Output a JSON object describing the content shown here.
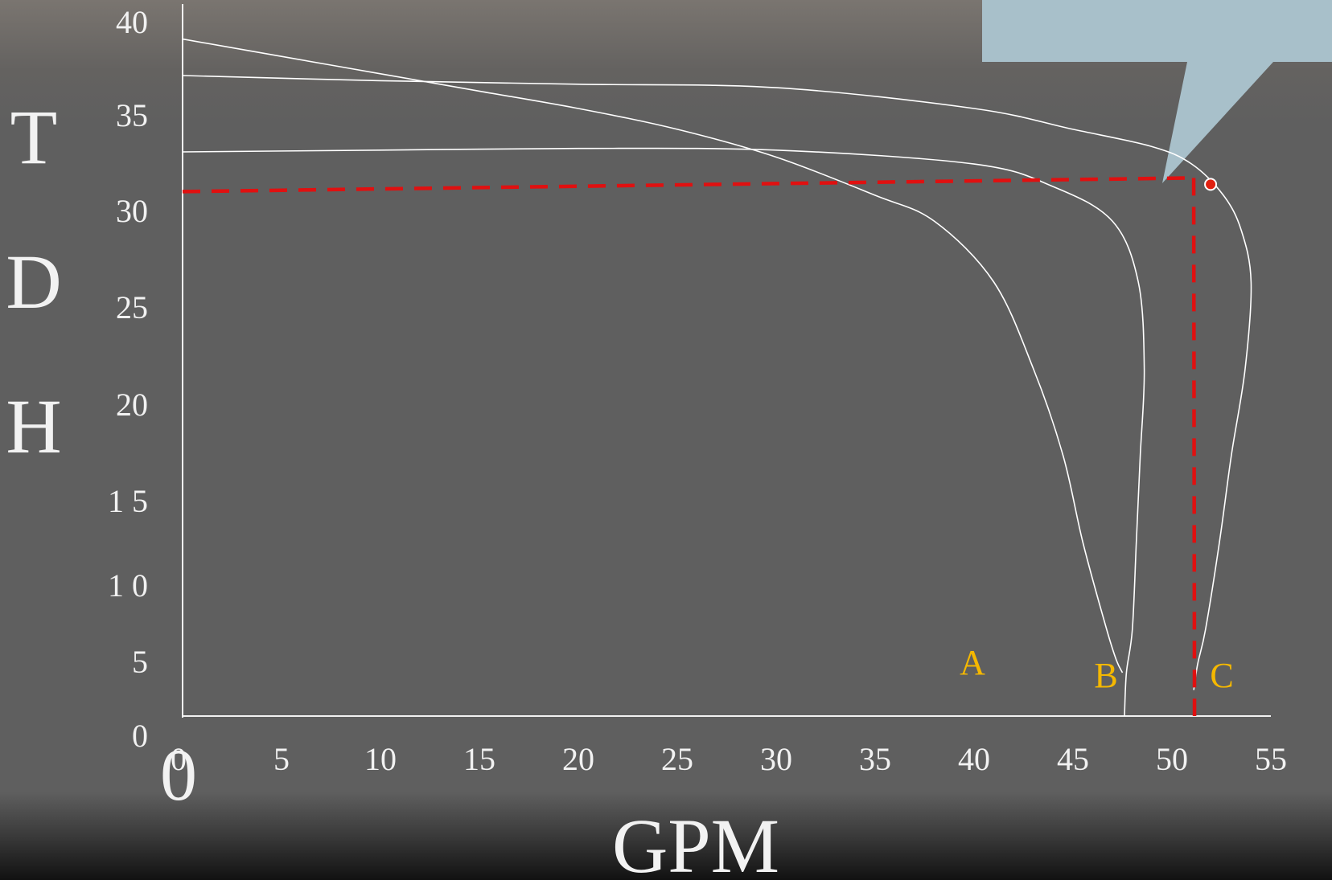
{
  "chart_data": {
    "type": "line",
    "xlabel": "GPM",
    "ylabel_letters": [
      "T",
      "D",
      "H"
    ],
    "x_ticks": [
      "0",
      "5",
      "10",
      "15",
      "20",
      "25",
      "30",
      "35",
      "40",
      "45",
      "50",
      "55"
    ],
    "y_ticks": [
      "0",
      "5",
      "1 0",
      "1 5",
      "20",
      "25",
      "30",
      "35",
      "40"
    ],
    "origin_label": "0",
    "xlim": [
      0,
      55
    ],
    "ylim": [
      0,
      40
    ],
    "grid": false,
    "series": [
      {
        "name": "A",
        "points": [
          [
            0,
            39
          ],
          [
            5,
            38
          ],
          [
            10,
            37
          ],
          [
            15,
            36
          ],
          [
            20,
            35
          ],
          [
            25,
            33.8
          ],
          [
            30,
            32.2
          ],
          [
            35,
            30
          ],
          [
            38,
            28.5
          ],
          [
            41,
            25
          ],
          [
            43,
            20
          ],
          [
            44.5,
            15
          ],
          [
            45.5,
            10
          ],
          [
            46.7,
            5
          ],
          [
            47.2,
            3.2
          ],
          [
            47.5,
            2.5
          ]
        ],
        "color": "#ffffff"
      },
      {
        "name": "B",
        "points": [
          [
            0,
            32.5
          ],
          [
            10,
            32.6
          ],
          [
            20,
            32.7
          ],
          [
            30,
            32.6
          ],
          [
            40,
            31.8
          ],
          [
            44,
            30.5
          ],
          [
            47,
            28.5
          ],
          [
            48.3,
            25
          ],
          [
            48.6,
            20
          ],
          [
            48.4,
            15
          ],
          [
            48.2,
            10
          ],
          [
            48,
            5
          ],
          [
            47.7,
            2.5
          ],
          [
            47.6,
            0
          ]
        ],
        "color": "#ffffff"
      },
      {
        "name": "C",
        "points": [
          [
            0,
            36.9
          ],
          [
            10,
            36.6
          ],
          [
            20,
            36.4
          ],
          [
            30,
            36.2
          ],
          [
            40,
            35
          ],
          [
            45,
            33.8
          ],
          [
            49,
            32.8
          ],
          [
            51,
            31.8
          ],
          [
            52.6,
            30
          ],
          [
            53.5,
            28
          ],
          [
            54,
            25
          ],
          [
            53.7,
            20
          ],
          [
            53,
            15
          ],
          [
            52.4,
            10
          ],
          [
            51.7,
            5
          ],
          [
            51.3,
            3
          ],
          [
            51.1,
            1.5
          ]
        ],
        "color": "#ffffff"
      }
    ],
    "operating_point": {
      "x": 51.1,
      "y": 31,
      "color": "#e02010",
      "line_color": "#e01010"
    },
    "callout": {
      "text": "",
      "color": "#a8c0ca"
    }
  }
}
